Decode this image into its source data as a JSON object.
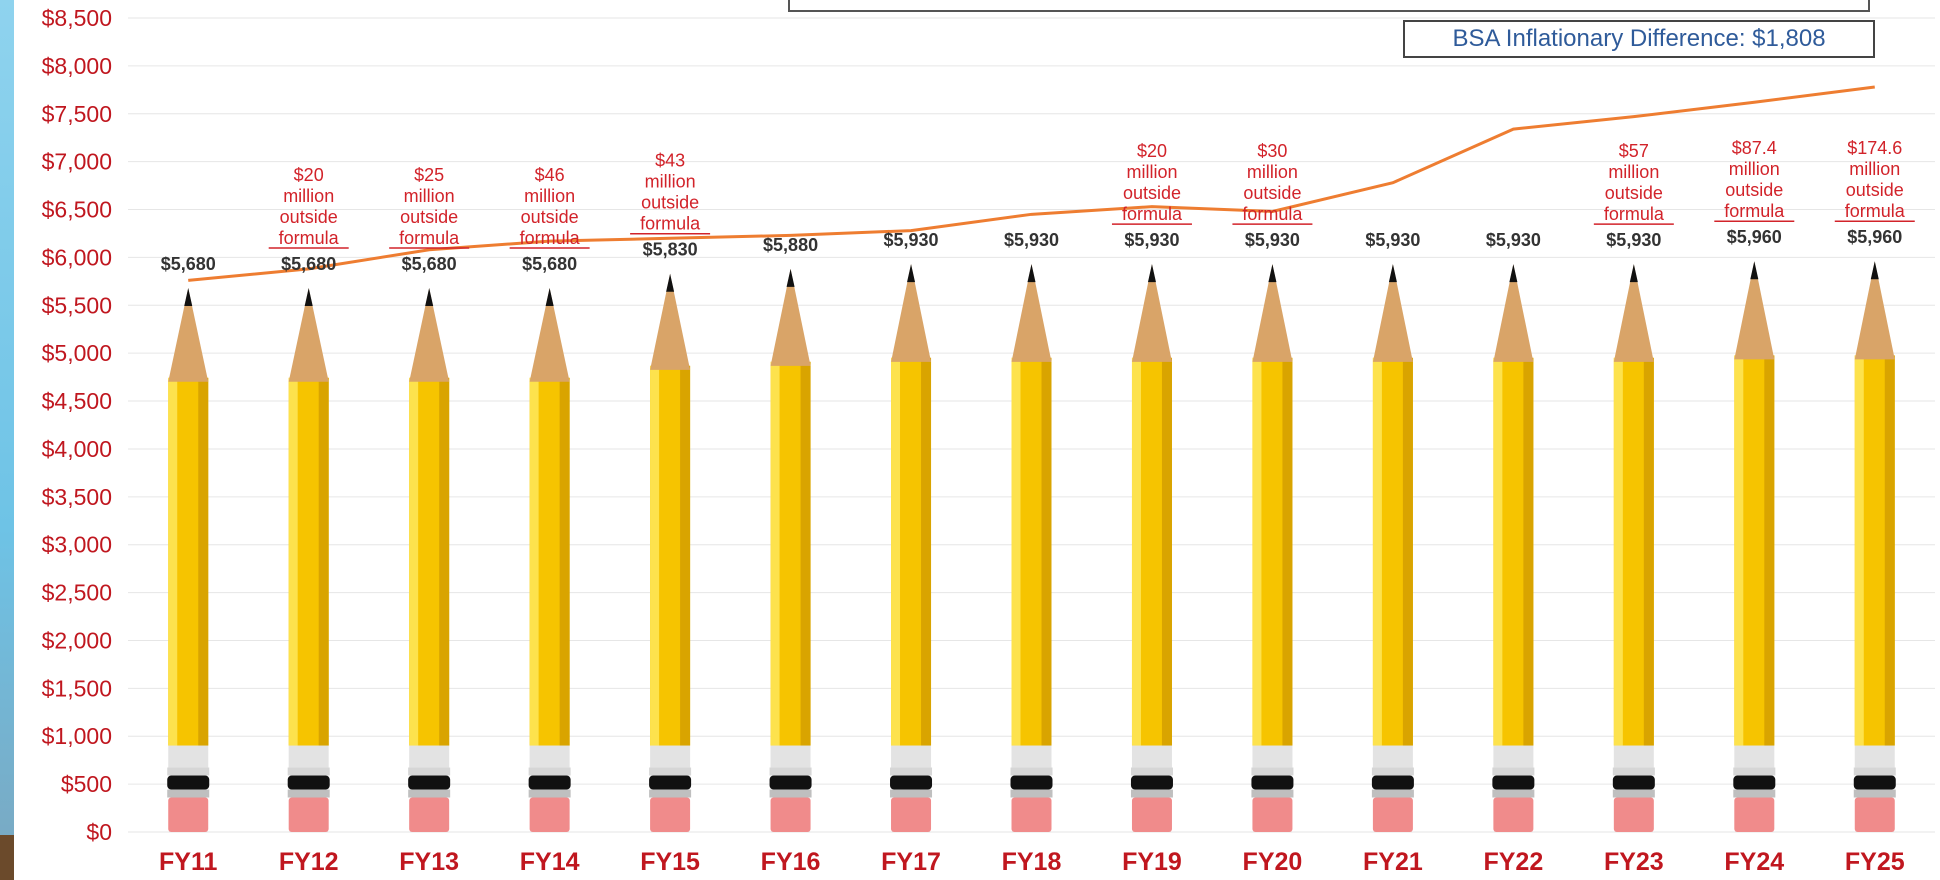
{
  "chart_data": {
    "type": "bar",
    "categories": [
      "FY11",
      "FY12",
      "FY13",
      "FY14",
      "FY15",
      "FY16",
      "FY17",
      "FY18",
      "FY19",
      "FY20",
      "FY21",
      "FY22",
      "FY23",
      "FY24",
      "FY25"
    ],
    "series": [
      {
        "values": [
          5680,
          5680,
          5680,
          5680,
          5830,
          5880,
          5930,
          5930,
          5930,
          5930,
          5930,
          5930,
          5930,
          5960,
          5960
        ]
      },
      {
        "values": [
          5760,
          5880,
          6080,
          6170,
          6200,
          6230,
          6280,
          6450,
          6530,
          6480,
          6780,
          7340,
          7470,
          7620,
          7780
        ]
      }
    ],
    "value_labels": [
      "$5,680",
      "$5,680",
      "$5,680",
      "$5,680",
      "$5,830",
      "$5,880",
      "$5,930",
      "$5,930",
      "$5,930",
      "$5,930",
      "$5,930",
      "$5,930",
      "$5,930",
      "$5,960",
      "$5,960"
    ],
    "annotations": [
      {
        "index": 1,
        "lines": [
          "$20",
          "million",
          "outside"
        ],
        "underlined": "formula"
      },
      {
        "index": 2,
        "lines": [
          "$25",
          "million",
          "outside"
        ],
        "underlined": "formula"
      },
      {
        "index": 3,
        "lines": [
          "$46",
          "million",
          "outside"
        ],
        "underlined": "formula"
      },
      {
        "index": 4,
        "lines": [
          "$43",
          "million",
          "outside"
        ],
        "underlined": "formula"
      },
      {
        "index": 8,
        "lines": [
          "$20",
          "million",
          "outside"
        ],
        "underlined": "formula"
      },
      {
        "index": 9,
        "lines": [
          "$30",
          "million",
          "outside"
        ],
        "underlined": "formula"
      },
      {
        "index": 12,
        "lines": [
          "$57",
          "million",
          "outside"
        ],
        "underlined": "formula"
      },
      {
        "index": 13,
        "lines": [
          "$87.4",
          "million",
          "outside"
        ],
        "underlined": "formula"
      },
      {
        "index": 14,
        "lines": [
          "$174.6",
          "million",
          "outside"
        ],
        "underlined": "formula"
      }
    ],
    "yticks": [
      "$0",
      "$500",
      "$1,000",
      "$1,500",
      "$2,000",
      "$2,500",
      "$3,000",
      "$3,500",
      "$4,000",
      "$4,500",
      "$5,000",
      "$5,500",
      "$6,000",
      "$6,500",
      "$7,000",
      "$7,500",
      "$8,000",
      "$8,500"
    ],
    "ylim": [
      0,
      8500
    ],
    "grid": true,
    "title": "",
    "xlabel": "",
    "ylabel": ""
  },
  "callout": {
    "text": "BSA Inflationary Difference: $1,808"
  },
  "colors": {
    "axis_text": "#c0171f",
    "value_text": "#333333",
    "annotation_text": "#d2232a",
    "line": "#ee7d31",
    "pencil_body": "#f6c400",
    "pencil_wood": "#d9a468",
    "eraser": "#f08b8b",
    "grid": "#e6e6e6",
    "callout_text": "#2f5b9a"
  }
}
